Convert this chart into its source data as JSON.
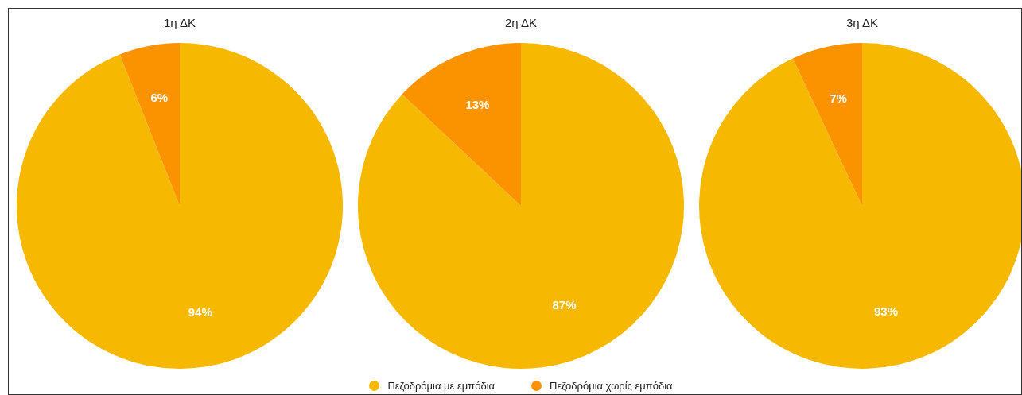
{
  "chart_data": [
    {
      "type": "pie",
      "title": "1η ΔΚ",
      "categories": [
        null,
        null
      ],
      "values": [
        94,
        6
      ],
      "colors": [
        "#f7b801",
        "#fb9300"
      ],
      "value_labels": [
        "94%",
        "6%"
      ]
    },
    {
      "type": "pie",
      "title": "2η ΔΚ",
      "categories": [
        "Πεζοδρόμια με εμπόδια",
        "Πεζοδρόμια χωρίς εμπόδια"
      ],
      "values": [
        87,
        13
      ],
      "colors": [
        "#f7b801",
        "#fb9300"
      ],
      "value_labels": [
        "87%",
        "13%"
      ],
      "legend": "bottom"
    },
    {
      "type": "pie",
      "title": "3η ΔΚ",
      "categories": [
        null,
        null
      ],
      "values": [
        93,
        7
      ],
      "colors": [
        "#f7b801",
        "#fb9300"
      ],
      "value_labels": [
        "93%",
        "7%"
      ]
    }
  ]
}
